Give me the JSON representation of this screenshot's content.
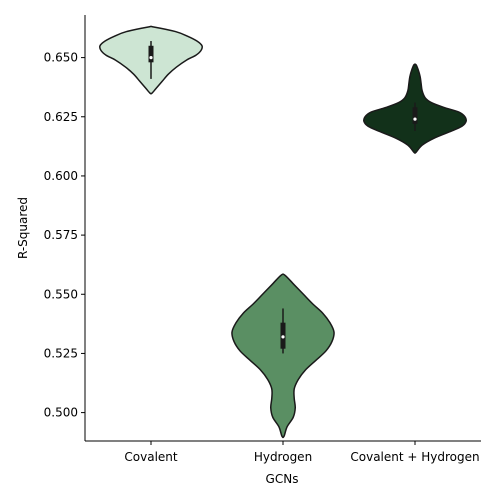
{
  "chart_data": {
    "type": "violin",
    "xlabel": "GCNs",
    "ylabel": "R-Squared",
    "ylim": [
      0.488,
      0.668
    ],
    "yticks": [
      0.5,
      0.525,
      0.55,
      0.575,
      0.6,
      0.625,
      0.65
    ],
    "ytick_labels": [
      "0.500",
      "0.525",
      "0.550",
      "0.575",
      "0.600",
      "0.625",
      "0.650"
    ],
    "grid": false,
    "categories": [
      "Covalent",
      "Hydrogen",
      "Covalent + Hydrogen"
    ],
    "series": [
      {
        "category": "Covalent",
        "color": "#cde5d3",
        "range": [
          0.635,
          0.663
        ],
        "median": 0.65,
        "q1": 0.648,
        "q3": 0.655,
        "whisker": [
          0.641,
          0.657
        ],
        "density": [
          [
            0.635,
            0.02
          ],
          [
            0.637,
            0.1
          ],
          [
            0.64,
            0.22
          ],
          [
            0.643,
            0.34
          ],
          [
            0.646,
            0.5
          ],
          [
            0.649,
            0.7
          ],
          [
            0.651,
            0.88
          ],
          [
            0.653,
            0.98
          ],
          [
            0.655,
            1.0
          ],
          [
            0.657,
            0.9
          ],
          [
            0.659,
            0.72
          ],
          [
            0.661,
            0.48
          ],
          [
            0.663,
            0.04
          ]
        ]
      },
      {
        "category": "Hydrogen",
        "color": "#5a8f63",
        "range": [
          0.49,
          0.558
        ],
        "median": 0.532,
        "q1": 0.527,
        "q3": 0.538,
        "whisker": [
          0.525,
          0.544
        ],
        "density": [
          [
            0.49,
            0.02
          ],
          [
            0.494,
            0.08
          ],
          [
            0.498,
            0.2
          ],
          [
            0.502,
            0.24
          ],
          [
            0.506,
            0.22
          ],
          [
            0.51,
            0.22
          ],
          [
            0.514,
            0.3
          ],
          [
            0.518,
            0.44
          ],
          [
            0.522,
            0.64
          ],
          [
            0.526,
            0.84
          ],
          [
            0.53,
            0.96
          ],
          [
            0.534,
            1.0
          ],
          [
            0.538,
            0.92
          ],
          [
            0.542,
            0.78
          ],
          [
            0.546,
            0.58
          ],
          [
            0.55,
            0.4
          ],
          [
            0.554,
            0.22
          ],
          [
            0.558,
            0.04
          ]
        ]
      },
      {
        "category": "Covalent + Hydrogen",
        "color": "#12311a",
        "range": [
          0.61,
          0.647
        ],
        "median": 0.624,
        "q1": 0.622,
        "q3": 0.629,
        "whisker": [
          0.619,
          0.631
        ],
        "density": [
          [
            0.61,
            0.02
          ],
          [
            0.613,
            0.14
          ],
          [
            0.616,
            0.38
          ],
          [
            0.619,
            0.72
          ],
          [
            0.621,
            0.92
          ],
          [
            0.623,
            1.0
          ],
          [
            0.625,
            0.98
          ],
          [
            0.627,
            0.86
          ],
          [
            0.629,
            0.56
          ],
          [
            0.631,
            0.32
          ],
          [
            0.633,
            0.2
          ],
          [
            0.636,
            0.14
          ],
          [
            0.639,
            0.12
          ],
          [
            0.642,
            0.1
          ],
          [
            0.645,
            0.06
          ],
          [
            0.647,
            0.02
          ]
        ]
      }
    ]
  }
}
